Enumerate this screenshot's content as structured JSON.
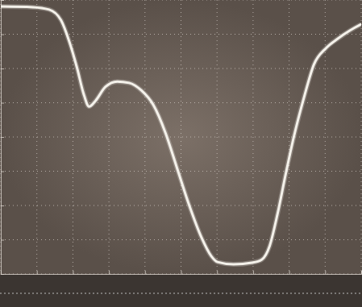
{
  "chart_data": {
    "type": "line",
    "x": [
      0,
      0.89,
      1.34,
      1.67,
      1.89,
      2.12,
      2.29,
      2.45,
      2.63,
      2.9,
      3.23,
      3.56,
      3.9,
      4.23,
      4.57,
      4.9,
      5.23,
      5.57,
      5.84,
      6.01,
      6.46,
      6.97,
      7.24,
      7.46,
      7.68,
      7.91,
      8.13,
      8.42,
      8.69,
      9.02,
      9.35,
      9.69,
      10
    ],
    "values": [
      7.81,
      7.79,
      7.72,
      7.41,
      6.82,
      6.0,
      5.29,
      4.89,
      5.06,
      5.46,
      5.62,
      5.58,
      5.36,
      4.94,
      4.12,
      3.06,
      2.0,
      1.06,
      0.52,
      0.35,
      0.28,
      0.33,
      0.42,
      0.82,
      1.76,
      2.94,
      4.0,
      5.18,
      6.12,
      6.59,
      6.87,
      7.11,
      7.29
    ],
    "color": "#f4f1ea",
    "xlim": [
      0,
      10
    ],
    "xticks": [
      0,
      1,
      2,
      3,
      4,
      5,
      6,
      7,
      8,
      9,
      10
    ],
    "ylim": [
      0,
      8
    ],
    "yticks": [
      0,
      1,
      2,
      3,
      4,
      5,
      6,
      7,
      8
    ],
    "grid": true,
    "tick_labels": false
  }
}
